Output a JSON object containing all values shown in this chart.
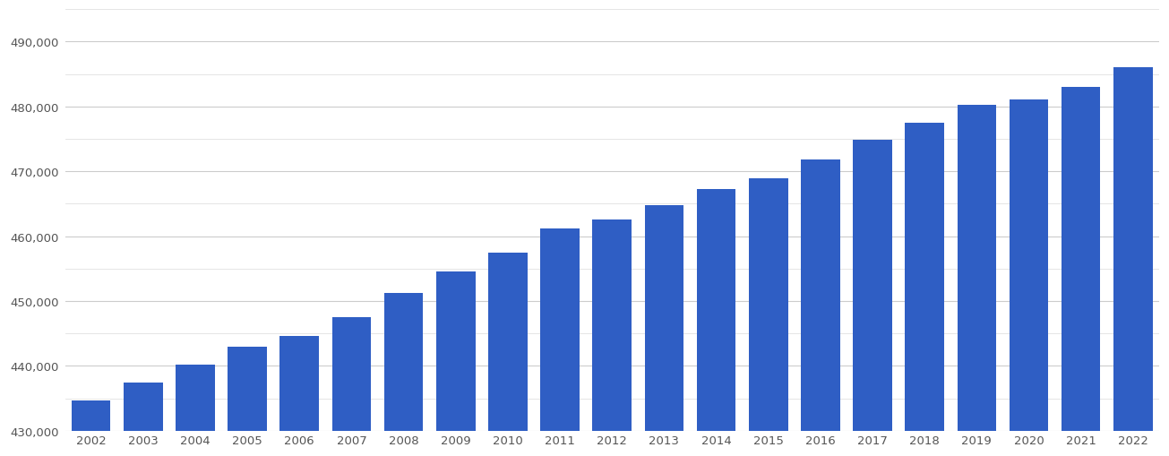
{
  "years": [
    2002,
    2003,
    2004,
    2005,
    2006,
    2007,
    2008,
    2009,
    2010,
    2011,
    2012,
    2013,
    2014,
    2015,
    2016,
    2017,
    2018,
    2019,
    2020,
    2021,
    2022
  ],
  "values": [
    434700,
    437400,
    440200,
    443000,
    444600,
    447500,
    451200,
    454500,
    457500,
    461200,
    462500,
    464800,
    467200,
    468900,
    471800,
    474800,
    477500,
    480200,
    481000,
    483000,
    486000
  ],
  "bar_color": "#2F5EC4",
  "background_color": "#ffffff",
  "grid_color_major": "#cccccc",
  "grid_color_minor": "#e0e0e0",
  "tick_color": "#555555",
  "ylim_min": 430000,
  "ylim_max": 495000,
  "ytick_major_step": 10000,
  "ytick_minor_step": 5000,
  "bar_bottom": 430000
}
